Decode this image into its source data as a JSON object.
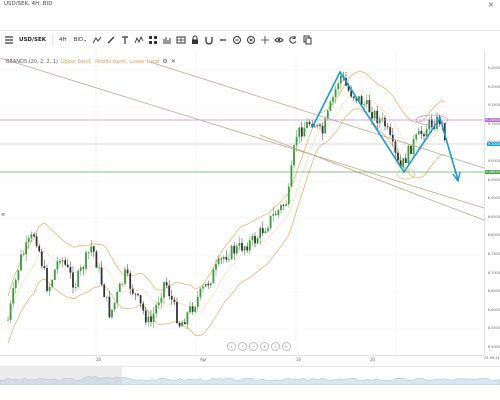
{
  "window": {
    "title": "USD/SEK, 4H, BID",
    "close_glyph": "×"
  },
  "toolbar": {
    "menu_icon": "hamburger-menu-icon",
    "symbol": "USD/SEK",
    "timeframe": "4H",
    "price_type": "BID",
    "chevron": "▾",
    "tools": [
      "line-tool-icon",
      "pencil-icon",
      "text-tool-icon",
      "pattern-tool-icon",
      "grid-icon",
      "bars-icon",
      "table-icon",
      "lock-icon",
      "magnet-icon",
      "minus-icon",
      "zoom-out-icon",
      "zoom-in-icon",
      "crosshair-icon",
      "eye-icon",
      "reset-icon",
      "copy-icon"
    ]
  },
  "legend": {
    "name": "BBANDS (20, 2, 2, 1)",
    "upper": "Upper band,",
    "middle": "Middle band,",
    "lower": "Lower band",
    "settings_icon": "gear-icon",
    "remove_icon": "close-icon"
  },
  "price_axis": {
    "labels": [
      "9.2500",
      "9.2000",
      "9.1500",
      "9.1000",
      "9.0500",
      "9.0000",
      "8.9500",
      "8.9000",
      "8.8500",
      "8.8000",
      "8.7500",
      "8.7000",
      "8.6500",
      "8.6000",
      "8.5500",
      "8.5000"
    ],
    "tags": [
      {
        "text": "9.15000",
        "color": "#b070c8",
        "kind": "resistance"
      },
      {
        "text": "9.1000",
        "color": "#1aa7d6",
        "kind": "current"
      },
      {
        "text": "9.06649",
        "color": "#44a447",
        "kind": "support"
      }
    ]
  },
  "time_axis": {
    "labels": [
      "20",
      "Apr",
      "10",
      "20"
    ],
    "stamp": "24.06.24"
  },
  "navigator_controls": [
    "«",
    "‹",
    "−",
    "+",
    "›",
    "»"
  ],
  "left_marker": "≡"
}
